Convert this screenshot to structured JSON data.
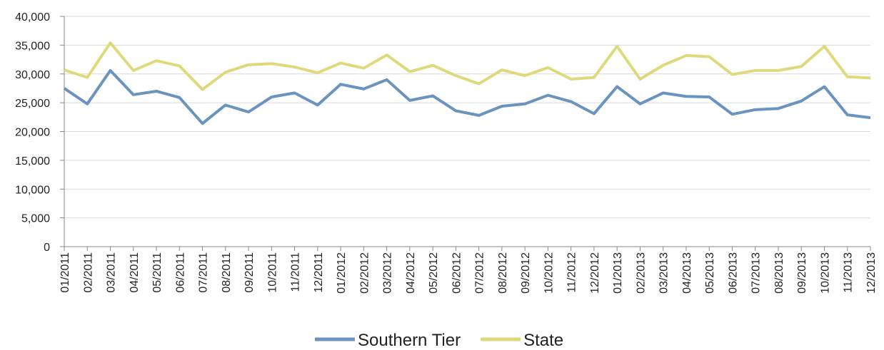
{
  "chart_data": {
    "type": "line",
    "categories": [
      "01/2011",
      "02/2011",
      "03/2011",
      "04/2011",
      "05/2011",
      "06/2011",
      "07/2011",
      "08/2011",
      "09/2011",
      "10/2011",
      "11/2011",
      "12/2011",
      "01/2012",
      "02/2012",
      "03/2012",
      "04/2012",
      "05/2012",
      "06/2012",
      "07/2012",
      "08/2012",
      "09/2012",
      "10/2012",
      "11/2012",
      "12/2012",
      "01/2013",
      "02/2013",
      "03/2013",
      "04/2013",
      "05/2013",
      "06/2013",
      "07/2013",
      "08/2013",
      "09/2013",
      "10/2013",
      "11/2013",
      "12/2013"
    ],
    "series": [
      {
        "name": "Southern Tier",
        "color": "#6a93bd",
        "values": [
          27500,
          24800,
          30600,
          26400,
          27000,
          25900,
          21400,
          24600,
          23400,
          26000,
          26700,
          24600,
          28200,
          27400,
          29000,
          25400,
          26200,
          23600,
          22800,
          24400,
          24800,
          26300,
          25200,
          23100,
          27800,
          24800,
          26700,
          26100,
          26000,
          23000,
          23800,
          24000,
          25300,
          27800,
          22900,
          22400
        ]
      },
      {
        "name": "State",
        "color": "#e0d97c",
        "values": [
          30700,
          29400,
          35400,
          30600,
          32300,
          31400,
          27300,
          30300,
          31600,
          31800,
          31200,
          30200,
          31900,
          31000,
          33300,
          30400,
          31500,
          29700,
          28300,
          30700,
          29700,
          31100,
          29100,
          29400,
          34800,
          29100,
          31500,
          33200,
          33000,
          29900,
          30600,
          30600,
          31300,
          34800,
          29500,
          29300
        ]
      }
    ],
    "ylim": [
      0,
      40000
    ],
    "yticks": [
      0,
      {
        "value": 5000,
        "label": "5,000"
      },
      {
        "value": 10000,
        "label": "10,000"
      },
      {
        "value": 15000,
        "label": "15,000"
      },
      {
        "value": 20000,
        "label": "20,000"
      },
      {
        "value": 25000,
        "label": "25,000"
      },
      {
        "value": 30000,
        "label": "30,000"
      },
      {
        "value": 35000,
        "label": "35,000"
      },
      {
        "value": 40000,
        "label": "40,000"
      }
    ],
    "grid": true,
    "legend": "bottom"
  }
}
